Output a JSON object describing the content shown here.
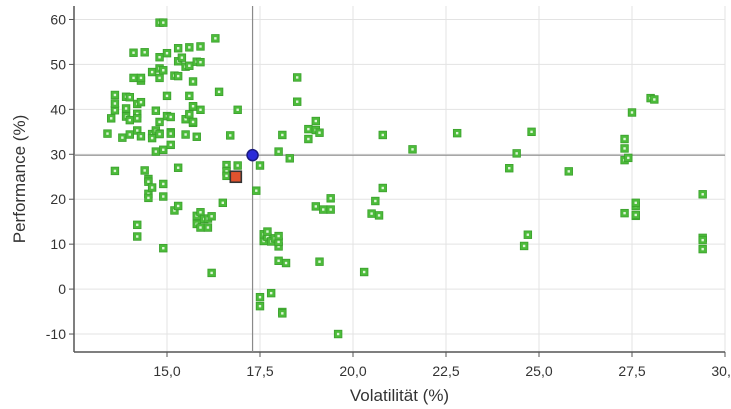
{
  "chart_data": {
    "type": "scatter",
    "xlabel": "Volatilität (%)",
    "ylabel": "Performance (%)",
    "xlim": [
      12.5,
      30.0
    ],
    "ylim": [
      -14,
      63
    ],
    "x_ticks": [
      15.0,
      17.5,
      20.0,
      22.5,
      25.0,
      27.5,
      30.0
    ],
    "x_tick_labels": [
      "15,0",
      "17,5",
      "20,0",
      "22,5",
      "25,0",
      "27,5",
      "30,0"
    ],
    "y_ticks": [
      -10,
      0,
      10,
      20,
      30,
      40,
      50,
      60
    ],
    "y_tick_labels": [
      "-10",
      "0",
      "10",
      "20",
      "30",
      "40",
      "50",
      "60"
    ],
    "grid": true,
    "reference_lines": {
      "x": 17.3,
      "y": 29.8
    },
    "highlight_points": [
      {
        "x": 17.3,
        "y": 29.8,
        "shape": "circle",
        "color": "#2b2bd9"
      },
      {
        "x": 16.85,
        "y": 25.0,
        "shape": "square",
        "color": "#e0522e"
      }
    ],
    "series": [
      {
        "color": "#4cbb3a",
        "points": [
          [
            13.4,
            34.6
          ],
          [
            13.5,
            38.0
          ],
          [
            13.6,
            39.8
          ],
          [
            13.6,
            41.3
          ],
          [
            13.6,
            43.2
          ],
          [
            13.6,
            26.3
          ],
          [
            13.9,
            40.2
          ],
          [
            13.9,
            42.8
          ],
          [
            13.8,
            33.7
          ],
          [
            13.9,
            38.4
          ],
          [
            14.0,
            42.7
          ],
          [
            14.0,
            37.6
          ],
          [
            14.0,
            34.4
          ],
          [
            14.1,
            47.0
          ],
          [
            14.1,
            52.6
          ],
          [
            14.2,
            39.0
          ],
          [
            14.2,
            41.2
          ],
          [
            14.2,
            38.0
          ],
          [
            14.3,
            46.4
          ],
          [
            14.3,
            47.0
          ],
          [
            14.3,
            41.6
          ],
          [
            14.2,
            35.3
          ],
          [
            14.3,
            34.0
          ],
          [
            14.2,
            14.3
          ],
          [
            14.2,
            11.7
          ],
          [
            14.4,
            52.7
          ],
          [
            14.4,
            26.4
          ],
          [
            14.5,
            24.5
          ],
          [
            14.5,
            23.9
          ],
          [
            14.5,
            21.2
          ],
          [
            14.6,
            48.3
          ],
          [
            14.6,
            22.6
          ],
          [
            14.5,
            20.3
          ],
          [
            14.6,
            34.5
          ],
          [
            14.6,
            33.6
          ],
          [
            14.7,
            39.7
          ],
          [
            14.7,
            35.3
          ],
          [
            14.7,
            30.6
          ],
          [
            14.8,
            49.1
          ],
          [
            14.8,
            51.6
          ],
          [
            14.8,
            47.0
          ],
          [
            14.8,
            34.6
          ],
          [
            14.8,
            37.2
          ],
          [
            14.8,
            59.3
          ],
          [
            14.8,
            34.5
          ],
          [
            14.9,
            59.3
          ],
          [
            14.9,
            48.7
          ],
          [
            14.9,
            31.0
          ],
          [
            14.9,
            23.4
          ],
          [
            14.9,
            20.6
          ],
          [
            14.9,
            9.1
          ],
          [
            15.0,
            52.5
          ],
          [
            15.0,
            43.0
          ],
          [
            15.0,
            38.5
          ],
          [
            15.1,
            34.9
          ],
          [
            15.1,
            32.1
          ],
          [
            15.1,
            34.6
          ],
          [
            15.1,
            38.3
          ],
          [
            15.2,
            47.5
          ],
          [
            15.3,
            50.7
          ],
          [
            15.3,
            53.6
          ],
          [
            15.3,
            47.4
          ],
          [
            15.2,
            17.5
          ],
          [
            15.3,
            27.0
          ],
          [
            15.3,
            18.5
          ],
          [
            15.4,
            51.5
          ],
          [
            15.5,
            49.5
          ],
          [
            15.5,
            34.4
          ],
          [
            15.5,
            37.8
          ],
          [
            15.6,
            53.8
          ],
          [
            15.6,
            49.7
          ],
          [
            15.6,
            43.0
          ],
          [
            15.6,
            38.9
          ],
          [
            15.7,
            46.2
          ],
          [
            15.7,
            40.6
          ],
          [
            15.7,
            40.7
          ],
          [
            15.7,
            37.0
          ],
          [
            15.7,
            37.2
          ],
          [
            15.8,
            50.6
          ],
          [
            15.8,
            33.9
          ],
          [
            15.8,
            14.5
          ],
          [
            15.8,
            16.3
          ],
          [
            15.9,
            54.0
          ],
          [
            15.9,
            50.5
          ],
          [
            15.9,
            39.9
          ],
          [
            15.9,
            17.1
          ],
          [
            15.9,
            13.7
          ],
          [
            16.0,
            15.6
          ],
          [
            16.1,
            15.7
          ],
          [
            16.1,
            13.7
          ],
          [
            16.2,
            16.2
          ],
          [
            16.2,
            3.6
          ],
          [
            16.3,
            55.8
          ],
          [
            16.4,
            43.9
          ],
          [
            16.5,
            19.2
          ],
          [
            16.6,
            27.6
          ],
          [
            16.6,
            26.2
          ],
          [
            16.6,
            25.2
          ],
          [
            16.7,
            34.2
          ],
          [
            16.9,
            39.9
          ],
          [
            16.9,
            27.5
          ],
          [
            17.4,
            21.9
          ],
          [
            17.5,
            27.5
          ],
          [
            17.5,
            -1.8
          ],
          [
            17.5,
            -3.8
          ],
          [
            17.6,
            10.7
          ],
          [
            17.6,
            12.2
          ],
          [
            17.7,
            11.6
          ],
          [
            17.7,
            12.8
          ],
          [
            17.8,
            10.6
          ],
          [
            17.8,
            -0.9
          ],
          [
            17.9,
            11.3
          ],
          [
            18.0,
            9.5
          ],
          [
            18.0,
            10.5
          ],
          [
            18.0,
            11.8
          ],
          [
            18.0,
            30.6
          ],
          [
            18.1,
            34.3
          ],
          [
            18.0,
            6.3
          ],
          [
            18.1,
            -5.1
          ],
          [
            18.1,
            -5.4
          ],
          [
            18.2,
            5.8
          ],
          [
            18.3,
            29.1
          ],
          [
            18.5,
            47.1
          ],
          [
            18.5,
            41.7
          ],
          [
            18.8,
            35.6
          ],
          [
            18.8,
            33.4
          ],
          [
            19.0,
            37.4
          ],
          [
            19.0,
            35.4
          ],
          [
            19.1,
            34.8
          ],
          [
            19.0,
            18.4
          ],
          [
            19.1,
            6.1
          ],
          [
            19.2,
            17.7
          ],
          [
            19.4,
            17.7
          ],
          [
            19.4,
            20.2
          ],
          [
            19.6,
            -10.0
          ],
          [
            20.3,
            3.8
          ],
          [
            20.5,
            16.8
          ],
          [
            20.6,
            19.6
          ],
          [
            20.7,
            16.4
          ],
          [
            20.8,
            22.5
          ],
          [
            20.8,
            34.3
          ],
          [
            21.6,
            31.1
          ],
          [
            22.8,
            34.7
          ],
          [
            24.2,
            26.9
          ],
          [
            24.4,
            30.2
          ],
          [
            24.6,
            9.6
          ],
          [
            24.7,
            12.1
          ],
          [
            24.8,
            35.0
          ],
          [
            25.8,
            26.2
          ],
          [
            27.3,
            33.4
          ],
          [
            27.3,
            31.3
          ],
          [
            27.3,
            28.7
          ],
          [
            27.3,
            16.9
          ],
          [
            27.4,
            29.2
          ],
          [
            27.5,
            39.3
          ],
          [
            27.6,
            16.3
          ],
          [
            27.6,
            18.5
          ],
          [
            27.6,
            19.2
          ],
          [
            27.6,
            16.5
          ],
          [
            28.0,
            42.5
          ],
          [
            28.1,
            42.2
          ],
          [
            29.4,
            21.1
          ],
          [
            29.4,
            11.4
          ],
          [
            29.4,
            10.9
          ],
          [
            29.4,
            8.9
          ]
        ]
      }
    ]
  }
}
